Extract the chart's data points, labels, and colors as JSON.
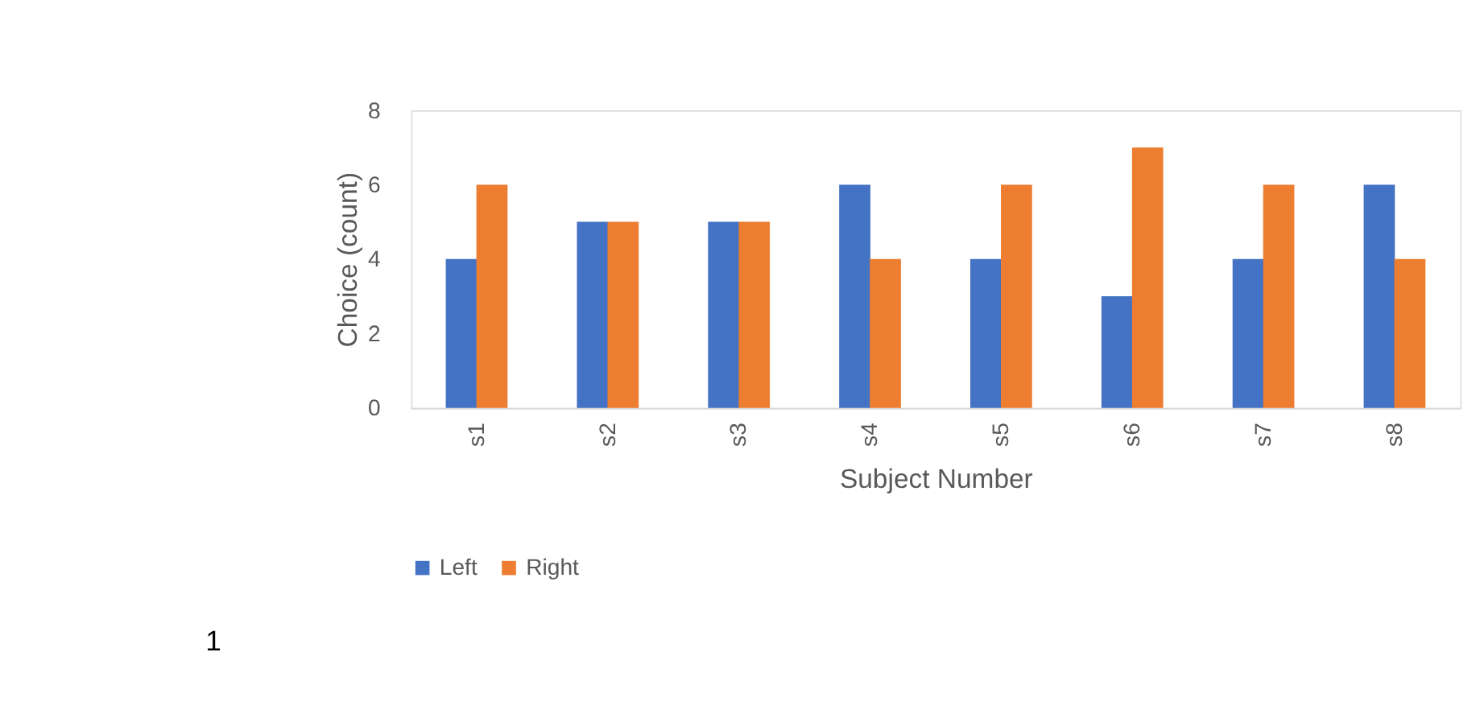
{
  "chart_data": {
    "type": "bar",
    "xlabel": "Subject Number",
    "ylabel": "Choice (count)",
    "categories": [
      "s1",
      "s2",
      "s3",
      "s4",
      "s5",
      "s6",
      "s7",
      "s8"
    ],
    "series": [
      {
        "name": "Left",
        "color": "#4472c4",
        "values": [
          4,
          5,
          5,
          6,
          4,
          3,
          4,
          6
        ]
      },
      {
        "name": "Right",
        "color": "#ed7d31",
        "values": [
          6,
          5,
          5,
          4,
          6,
          7,
          6,
          4
        ]
      }
    ],
    "ylim": [
      0,
      8
    ],
    "yticks": [
      0,
      2,
      4,
      6,
      8
    ],
    "grid": false,
    "legend": "bottom",
    "annotations": [
      "1"
    ]
  }
}
